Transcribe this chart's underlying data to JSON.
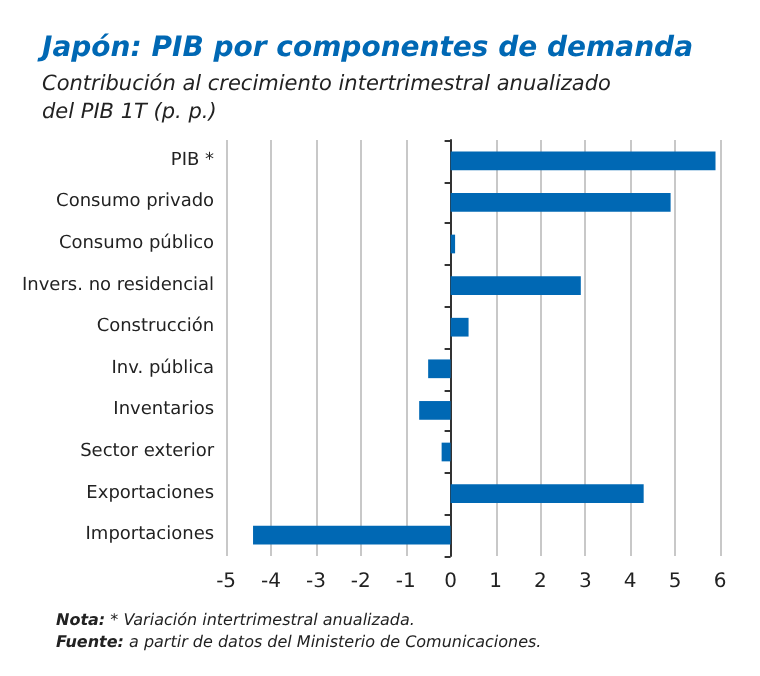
{
  "chart_data": {
    "type": "bar",
    "orientation": "horizontal",
    "title": "Japón: PIB por componentes de demanda",
    "subtitle": "Contribución al crecimiento intertrimestral anualizado\ndel PIB 1T (p. p.)",
    "categories": [
      "PIB *",
      "Consumo privado",
      "Consumo público",
      "Invers. no residencial",
      "Construcción",
      "Inv. pública",
      "Inventarios",
      "Sector exterior",
      "Exportaciones",
      "Importaciones"
    ],
    "values": [
      5.9,
      4.9,
      0.1,
      2.9,
      0.4,
      -0.5,
      -0.7,
      -0.2,
      4.3,
      -4.4
    ],
    "color": "#0068b4",
    "xlim": [
      -5,
      6
    ],
    "xticks": [
      -5,
      -4,
      -3,
      -2,
      -1,
      0,
      1,
      2,
      3,
      4,
      5,
      6
    ],
    "grid": "x",
    "annotations": [
      "Nota: * Variación intertrimestral anualizada.",
      "Fuente: a partir de datos del Ministerio de Comunicaciones."
    ]
  }
}
